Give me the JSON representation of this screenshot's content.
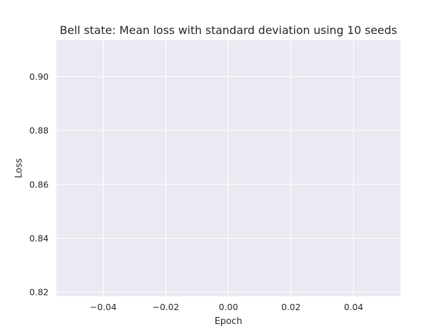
{
  "chart_data": {
    "type": "line",
    "title": "Bell state: Mean loss with standard deviation using 10 seeds",
    "xlabel": "Epoch",
    "ylabel": "Loss",
    "xlim": [
      -0.055,
      0.055
    ],
    "ylim": [
      0.8185,
      0.9135
    ],
    "xticks": [
      -0.04,
      -0.02,
      0.0,
      0.02,
      0.04
    ],
    "xtick_labels": [
      "−0.04",
      "−0.02",
      "0.00",
      "0.02",
      "0.04"
    ],
    "yticks": [
      0.82,
      0.84,
      0.86,
      0.88,
      0.9
    ],
    "ytick_labels": [
      "0.82",
      "0.84",
      "0.86",
      "0.88",
      "0.90"
    ],
    "series": [],
    "grid": true,
    "colors": {
      "plot_background": "#eaeaf2",
      "grid": "#ffffff",
      "text": "#262626"
    }
  }
}
